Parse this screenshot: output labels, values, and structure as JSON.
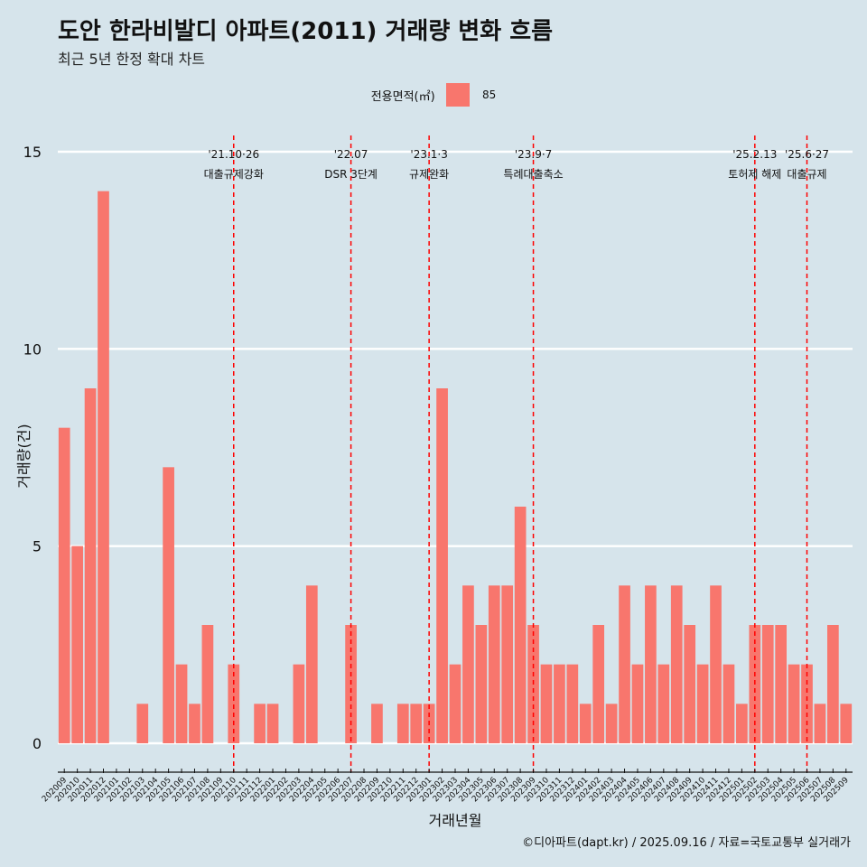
{
  "header": {
    "title": "도안 한라비발디 아파트(2011) 거래량 변화 흐름",
    "subtitle": "최근 5년 한정 확대 차트"
  },
  "legend": {
    "title": "전용면적(㎡)",
    "label": "85"
  },
  "caption": "©디아파트(dapt.kr) / 2025.09.16 / 자료=국토교통부 실거래가",
  "colors": {
    "bar": "#f8766d",
    "vline": "#ff0000",
    "grid": "#ffffff",
    "background": "#d6e4eb"
  },
  "chart_data": {
    "type": "bar",
    "xlabel": "거래년월",
    "ylabel": "거래량(건)",
    "ylim": [
      0,
      15
    ],
    "yticks": [
      0,
      5,
      10,
      15
    ],
    "categories": [
      "202009",
      "202010",
      "202011",
      "202012",
      "202101",
      "202102",
      "202103",
      "202104",
      "202105",
      "202106",
      "202107",
      "202108",
      "202109",
      "202110",
      "202111",
      "202112",
      "202201",
      "202202",
      "202203",
      "202204",
      "202205",
      "202206",
      "202207",
      "202208",
      "202209",
      "202210",
      "202211",
      "202212",
      "202301",
      "202302",
      "202303",
      "202304",
      "202305",
      "202306",
      "202307",
      "202308",
      "202309",
      "202310",
      "202311",
      "202312",
      "202401",
      "202402",
      "202403",
      "202404",
      "202405",
      "202406",
      "202407",
      "202408",
      "202409",
      "202410",
      "202411",
      "202412",
      "202501",
      "202502",
      "202503",
      "202504",
      "202505",
      "202506",
      "202507",
      "202508",
      "202509"
    ],
    "series": [
      {
        "name": "85",
        "values": [
          8,
          5,
          9,
          14,
          0,
          0,
          1,
          0,
          7,
          2,
          1,
          3,
          0,
          2,
          0,
          1,
          1,
          0,
          2,
          4,
          0,
          0,
          3,
          0,
          1,
          0,
          1,
          1,
          1,
          9,
          2,
          4,
          3,
          4,
          4,
          6,
          3,
          2,
          2,
          2,
          1,
          3,
          1,
          4,
          2,
          4,
          2,
          4,
          3,
          2,
          4,
          2,
          1,
          3,
          3,
          3,
          2,
          2,
          1,
          3,
          1
        ]
      }
    ],
    "annotations": [
      {
        "index": 13,
        "line1": "'21.10·26",
        "line2": "대출규제강화"
      },
      {
        "index": 22,
        "line1": "'22.07",
        "line2": "DSR 3단계"
      },
      {
        "index": 28,
        "line1": "'23.1·3",
        "line2": "규제완화"
      },
      {
        "index": 36,
        "line1": "'23.9·7",
        "line2": "특례대출축소"
      },
      {
        "index": 53,
        "line1": "'25.2.13",
        "line2": "토허제 해제"
      },
      {
        "index": 57,
        "line1": "'25.6·27",
        "line2": "대출규제"
      }
    ]
  }
}
